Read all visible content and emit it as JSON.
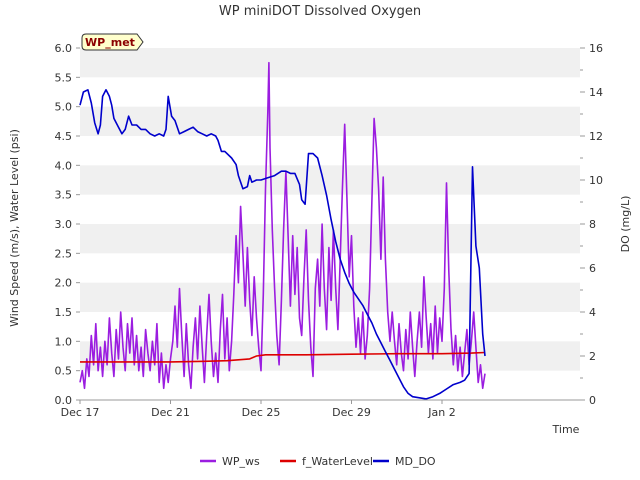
{
  "chart_data": {
    "type": "line",
    "title": "WP miniDOT Dissolved Oxygen",
    "tag_label": "WP_met",
    "xlabel": "Time",
    "ylabel_left": "Wind Speed (m/s), Water Level (psi)",
    "ylabel_right": "DO (mg/L)",
    "x_range_days": [
      0,
      22.1
    ],
    "x_ticks": [
      {
        "day": 0,
        "label": "Dec 17"
      },
      {
        "day": 4,
        "label": "Dec 21"
      },
      {
        "day": 8,
        "label": "Dec 25"
      },
      {
        "day": 12,
        "label": "Dec 29"
      },
      {
        "day": 16,
        "label": "Jan 2"
      }
    ],
    "ylim_left": [
      0,
      6.0
    ],
    "yticks_left": [
      "0.0",
      "0.5",
      "1.0",
      "1.5",
      "2.0",
      "2.5",
      "3.0",
      "3.5",
      "4.0",
      "4.5",
      "5.0",
      "5.5",
      "6.0"
    ],
    "ylim_right": [
      0,
      16
    ],
    "yticks_right": [
      "0",
      "2",
      "4",
      "6",
      "8",
      "10",
      "12",
      "14",
      "16"
    ],
    "grid": "horizontal bands",
    "legend_position": "bottom",
    "series": [
      {
        "name": "WP_ws",
        "color": "#9b1de0",
        "axis": "left",
        "points": [
          [
            0.0,
            0.3
          ],
          [
            0.1,
            0.5
          ],
          [
            0.2,
            0.2
          ],
          [
            0.3,
            0.7
          ],
          [
            0.4,
            0.4
          ],
          [
            0.5,
            1.1
          ],
          [
            0.6,
            0.6
          ],
          [
            0.7,
            1.3
          ],
          [
            0.8,
            0.5
          ],
          [
            0.9,
            0.9
          ],
          [
            1.0,
            0.4
          ],
          [
            1.1,
            1.0
          ],
          [
            1.2,
            0.6
          ],
          [
            1.3,
            1.4
          ],
          [
            1.4,
            0.8
          ],
          [
            1.5,
            0.4
          ],
          [
            1.6,
            1.2
          ],
          [
            1.7,
            0.7
          ],
          [
            1.8,
            1.5
          ],
          [
            1.9,
            0.9
          ],
          [
            2.0,
            0.5
          ],
          [
            2.1,
            1.3
          ],
          [
            2.2,
            0.8
          ],
          [
            2.3,
            1.4
          ],
          [
            2.4,
            0.6
          ],
          [
            2.5,
            1.1
          ],
          [
            2.6,
            0.5
          ],
          [
            2.7,
            0.9
          ],
          [
            2.8,
            0.4
          ],
          [
            2.9,
            1.2
          ],
          [
            3.0,
            0.8
          ],
          [
            3.1,
            0.5
          ],
          [
            3.2,
            1.0
          ],
          [
            3.3,
            0.6
          ],
          [
            3.4,
            1.3
          ],
          [
            3.5,
            0.3
          ],
          [
            3.6,
            0.8
          ],
          [
            3.7,
            0.2
          ],
          [
            3.8,
            0.6
          ],
          [
            3.9,
            0.3
          ],
          [
            4.0,
            0.7
          ],
          [
            4.1,
            1.0
          ],
          [
            4.2,
            1.6
          ],
          [
            4.3,
            0.9
          ],
          [
            4.4,
            1.9
          ],
          [
            4.5,
            1.1
          ],
          [
            4.6,
            0.4
          ],
          [
            4.7,
            1.3
          ],
          [
            4.8,
            0.6
          ],
          [
            4.9,
            0.2
          ],
          [
            5.0,
            0.9
          ],
          [
            5.1,
            1.4
          ],
          [
            5.2,
            0.7
          ],
          [
            5.3,
            1.6
          ],
          [
            5.4,
            0.9
          ],
          [
            5.5,
            0.3
          ],
          [
            5.6,
            1.1
          ],
          [
            5.7,
            1.8
          ],
          [
            5.8,
            1.0
          ],
          [
            5.9,
            0.4
          ],
          [
            6.0,
            0.8
          ],
          [
            6.1,
            0.3
          ],
          [
            6.2,
            1.2
          ],
          [
            6.3,
            1.8
          ],
          [
            6.4,
            0.7
          ],
          [
            6.5,
            1.4
          ],
          [
            6.6,
            0.5
          ],
          [
            6.7,
            1.0
          ],
          [
            6.8,
            1.8
          ],
          [
            6.9,
            2.8
          ],
          [
            7.0,
            2.0
          ],
          [
            7.1,
            3.3
          ],
          [
            7.2,
            2.5
          ],
          [
            7.3,
            1.6
          ],
          [
            7.4,
            2.6
          ],
          [
            7.5,
            1.7
          ],
          [
            7.6,
            1.1
          ],
          [
            7.7,
            2.1
          ],
          [
            7.8,
            1.4
          ],
          [
            7.9,
            0.9
          ],
          [
            8.0,
            0.5
          ],
          [
            8.1,
            1.8
          ],
          [
            8.2,
            3.6
          ],
          [
            8.3,
            4.9
          ],
          [
            8.35,
            5.75
          ],
          [
            8.4,
            4.3
          ],
          [
            8.5,
            2.9
          ],
          [
            8.6,
            1.9
          ],
          [
            8.7,
            1.1
          ],
          [
            8.8,
            0.6
          ],
          [
            8.9,
            1.7
          ],
          [
            9.0,
            2.9
          ],
          [
            9.1,
            3.9
          ],
          [
            9.2,
            2.8
          ],
          [
            9.3,
            1.6
          ],
          [
            9.4,
            2.8
          ],
          [
            9.5,
            1.8
          ],
          [
            9.6,
            2.6
          ],
          [
            9.7,
            1.4
          ],
          [
            9.8,
            1.1
          ],
          [
            9.9,
            2.1
          ],
          [
            10.0,
            2.9
          ],
          [
            10.1,
            1.7
          ],
          [
            10.2,
            0.9
          ],
          [
            10.3,
            0.4
          ],
          [
            10.4,
            1.9
          ],
          [
            10.5,
            2.4
          ],
          [
            10.6,
            1.6
          ],
          [
            10.7,
            3.0
          ],
          [
            10.8,
            1.9
          ],
          [
            10.9,
            1.2
          ],
          [
            11.0,
            2.6
          ],
          [
            11.1,
            1.7
          ],
          [
            11.2,
            2.9
          ],
          [
            11.3,
            1.9
          ],
          [
            11.4,
            1.2
          ],
          [
            11.5,
            2.4
          ],
          [
            11.6,
            3.6
          ],
          [
            11.7,
            4.7
          ],
          [
            11.8,
            3.4
          ],
          [
            11.9,
            2.1
          ],
          [
            12.0,
            2.8
          ],
          [
            12.1,
            1.6
          ],
          [
            12.2,
            0.9
          ],
          [
            12.3,
            1.4
          ],
          [
            12.4,
            0.8
          ],
          [
            12.5,
            1.5
          ],
          [
            12.6,
            0.7
          ],
          [
            12.7,
            1.1
          ],
          [
            12.8,
            1.9
          ],
          [
            12.9,
            3.4
          ],
          [
            13.0,
            4.8
          ],
          [
            13.1,
            4.3
          ],
          [
            13.2,
            3.6
          ],
          [
            13.3,
            2.4
          ],
          [
            13.4,
            3.8
          ],
          [
            13.5,
            2.4
          ],
          [
            13.6,
            1.5
          ],
          [
            13.7,
            1.0
          ],
          [
            13.8,
            1.5
          ],
          [
            13.9,
            1.0
          ],
          [
            14.0,
            0.6
          ],
          [
            14.1,
            1.3
          ],
          [
            14.2,
            0.8
          ],
          [
            14.3,
            0.5
          ],
          [
            14.4,
            1.2
          ],
          [
            14.5,
            0.7
          ],
          [
            14.6,
            1.5
          ],
          [
            14.7,
            0.9
          ],
          [
            14.8,
            0.4
          ],
          [
            14.9,
            1.0
          ],
          [
            15.0,
            1.5
          ],
          [
            15.1,
            0.9
          ],
          [
            15.2,
            2.1
          ],
          [
            15.3,
            1.4
          ],
          [
            15.4,
            0.8
          ],
          [
            15.5,
            1.3
          ],
          [
            15.6,
            0.7
          ],
          [
            15.7,
            1.6
          ],
          [
            15.8,
            0.8
          ],
          [
            15.9,
            1.4
          ],
          [
            16.0,
            1.0
          ],
          [
            16.1,
            1.9
          ],
          [
            16.2,
            3.7
          ],
          [
            16.3,
            2.2
          ],
          [
            16.4,
            1.2
          ],
          [
            16.5,
            0.6
          ],
          [
            16.6,
            1.1
          ],
          [
            16.7,
            0.5
          ],
          [
            16.8,
            0.9
          ],
          [
            16.9,
            0.4
          ],
          [
            17.0,
            0.8
          ],
          [
            17.1,
            1.2
          ],
          [
            17.2,
            0.6
          ],
          [
            17.3,
            1.0
          ],
          [
            17.4,
            1.5
          ],
          [
            17.5,
            0.9
          ],
          [
            17.6,
            0.3
          ],
          [
            17.7,
            0.6
          ],
          [
            17.8,
            0.2
          ],
          [
            17.9,
            0.45
          ]
        ]
      },
      {
        "name": "f_WaterLevel",
        "color": "#dd0000",
        "axis": "left",
        "points": [
          [
            0.0,
            0.65
          ],
          [
            2.0,
            0.65
          ],
          [
            4.0,
            0.65
          ],
          [
            5.5,
            0.66
          ],
          [
            6.5,
            0.67
          ],
          [
            7.5,
            0.7
          ],
          [
            7.8,
            0.75
          ],
          [
            8.2,
            0.77
          ],
          [
            10.0,
            0.77
          ],
          [
            12.0,
            0.78
          ],
          [
            14.0,
            0.79
          ],
          [
            16.0,
            0.79
          ],
          [
            17.3,
            0.8
          ],
          [
            17.9,
            0.81
          ]
        ]
      },
      {
        "name": "MD_DO",
        "color": "#0000cc",
        "axis": "right",
        "points": [
          [
            0.0,
            13.4
          ],
          [
            0.15,
            14.0
          ],
          [
            0.35,
            14.1
          ],
          [
            0.5,
            13.5
          ],
          [
            0.65,
            12.6
          ],
          [
            0.8,
            12.1
          ],
          [
            0.9,
            12.5
          ],
          [
            1.0,
            13.8
          ],
          [
            1.15,
            14.1
          ],
          [
            1.3,
            13.8
          ],
          [
            1.4,
            13.4
          ],
          [
            1.5,
            12.8
          ],
          [
            1.7,
            12.4
          ],
          [
            1.85,
            12.1
          ],
          [
            2.0,
            12.3
          ],
          [
            2.15,
            12.9
          ],
          [
            2.3,
            12.5
          ],
          [
            2.5,
            12.5
          ],
          [
            2.7,
            12.3
          ],
          [
            2.9,
            12.3
          ],
          [
            3.1,
            12.1
          ],
          [
            3.3,
            12.0
          ],
          [
            3.5,
            12.1
          ],
          [
            3.7,
            12.0
          ],
          [
            3.8,
            12.3
          ],
          [
            3.9,
            13.8
          ],
          [
            4.05,
            12.9
          ],
          [
            4.2,
            12.7
          ],
          [
            4.4,
            12.1
          ],
          [
            4.6,
            12.2
          ],
          [
            4.8,
            12.3
          ],
          [
            5.0,
            12.4
          ],
          [
            5.2,
            12.2
          ],
          [
            5.4,
            12.1
          ],
          [
            5.6,
            12.0
          ],
          [
            5.8,
            12.1
          ],
          [
            6.0,
            12.0
          ],
          [
            6.1,
            11.8
          ],
          [
            6.25,
            11.3
          ],
          [
            6.4,
            11.3
          ],
          [
            6.7,
            11.0
          ],
          [
            6.9,
            10.7
          ],
          [
            7.0,
            10.2
          ],
          [
            7.2,
            9.6
          ],
          [
            7.4,
            9.7
          ],
          [
            7.5,
            10.2
          ],
          [
            7.6,
            9.9
          ],
          [
            7.8,
            10.0
          ],
          [
            8.0,
            10.0
          ],
          [
            8.3,
            10.1
          ],
          [
            8.6,
            10.2
          ],
          [
            8.9,
            10.4
          ],
          [
            9.1,
            10.4
          ],
          [
            9.3,
            10.3
          ],
          [
            9.5,
            10.3
          ],
          [
            9.7,
            9.8
          ],
          [
            9.8,
            9.1
          ],
          [
            9.95,
            8.9
          ],
          [
            10.1,
            11.2
          ],
          [
            10.3,
            11.2
          ],
          [
            10.5,
            11.0
          ],
          [
            10.7,
            10.2
          ],
          [
            10.9,
            9.3
          ],
          [
            11.1,
            8.2
          ],
          [
            11.3,
            7.2
          ],
          [
            11.5,
            6.4
          ],
          [
            11.7,
            5.8
          ],
          [
            11.9,
            5.3
          ],
          [
            12.1,
            4.9
          ],
          [
            12.3,
            4.6
          ],
          [
            12.5,
            4.3
          ],
          [
            12.7,
            3.9
          ],
          [
            12.9,
            3.5
          ],
          [
            13.1,
            3.0
          ],
          [
            13.3,
            2.6
          ],
          [
            13.5,
            2.2
          ],
          [
            13.7,
            1.8
          ],
          [
            13.9,
            1.4
          ],
          [
            14.1,
            1.0
          ],
          [
            14.3,
            0.6
          ],
          [
            14.5,
            0.3
          ],
          [
            14.7,
            0.15
          ],
          [
            15.0,
            0.1
          ],
          [
            15.3,
            0.05
          ],
          [
            15.6,
            0.15
          ],
          [
            15.9,
            0.3
          ],
          [
            16.2,
            0.5
          ],
          [
            16.5,
            0.7
          ],
          [
            16.8,
            0.8
          ],
          [
            17.0,
            0.9
          ],
          [
            17.2,
            1.2
          ],
          [
            17.35,
            10.6
          ],
          [
            17.5,
            7.0
          ],
          [
            17.65,
            6.0
          ],
          [
            17.8,
            3.0
          ],
          [
            17.9,
            2.0
          ]
        ]
      }
    ]
  }
}
